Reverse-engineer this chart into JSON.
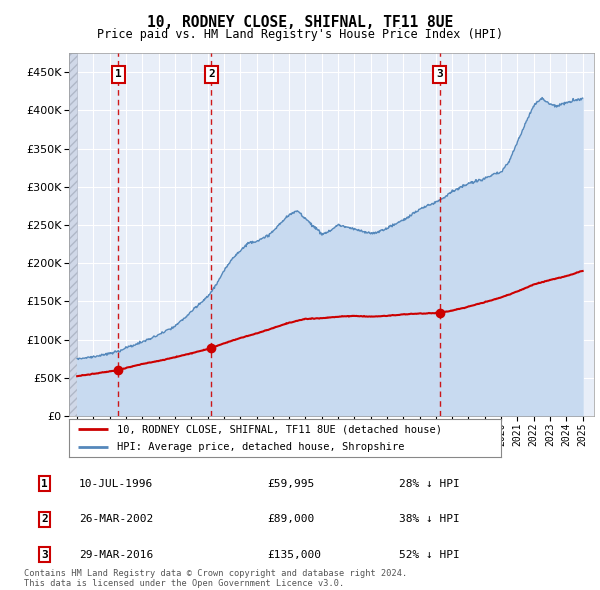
{
  "title": "10, RODNEY CLOSE, SHIFNAL, TF11 8UE",
  "subtitle": "Price paid vs. HM Land Registry's House Price Index (HPI)",
  "ytick_values": [
    0,
    50000,
    100000,
    150000,
    200000,
    250000,
    300000,
    350000,
    400000,
    450000
  ],
  "ylim": [
    0,
    475000
  ],
  "xlim_start": 1993.5,
  "xlim_end": 2025.7,
  "transactions": [
    {
      "num": 1,
      "date": "10-JUL-1996",
      "year": 1996.53,
      "price": 59995,
      "pct": "28%"
    },
    {
      "num": 2,
      "date": "26-MAR-2002",
      "year": 2002.23,
      "price": 89000,
      "pct": "38%"
    },
    {
      "num": 3,
      "date": "29-MAR-2016",
      "year": 2016.24,
      "price": 135000,
      "pct": "52%"
    }
  ],
  "legend_property": "10, RODNEY CLOSE, SHIFNAL, TF11 8UE (detached house)",
  "legend_hpi": "HPI: Average price, detached house, Shropshire",
  "footer": "Contains HM Land Registry data © Crown copyright and database right 2024.\nThis data is licensed under the Open Government Licence v3.0.",
  "property_line_color": "#cc0000",
  "hpi_line_color": "#5588bb",
  "hpi_fill_color": "#c8daf0",
  "marker_color": "#cc0000",
  "vline_color": "#cc0000",
  "box_edge_color": "#cc0000",
  "background_color": "#ffffff",
  "plot_bg_color": "#e8eef8",
  "grid_color": "#ffffff",
  "hpi_pts": [
    [
      1994,
      73000
    ],
    [
      1994.5,
      74000
    ],
    [
      1995,
      76000
    ],
    [
      1995.5,
      78000
    ],
    [
      1996,
      80000
    ],
    [
      1996.5,
      83000
    ],
    [
      1997,
      88000
    ],
    [
      1997.5,
      91000
    ],
    [
      1998,
      95000
    ],
    [
      1998.5,
      99000
    ],
    [
      1999,
      104000
    ],
    [
      1999.5,
      110000
    ],
    [
      2000,
      116000
    ],
    [
      2000.5,
      125000
    ],
    [
      2001,
      135000
    ],
    [
      2001.5,
      145000
    ],
    [
      2002,
      155000
    ],
    [
      2002.5,
      170000
    ],
    [
      2003,
      188000
    ],
    [
      2003.5,
      205000
    ],
    [
      2004,
      215000
    ],
    [
      2004.5,
      225000
    ],
    [
      2005,
      228000
    ],
    [
      2005.5,
      232000
    ],
    [
      2006,
      240000
    ],
    [
      2006.5,
      252000
    ],
    [
      2007,
      262000
    ],
    [
      2007.5,
      268000
    ],
    [
      2008,
      258000
    ],
    [
      2008.5,
      248000
    ],
    [
      2009,
      238000
    ],
    [
      2009.5,
      242000
    ],
    [
      2010,
      250000
    ],
    [
      2010.5,
      248000
    ],
    [
      2011,
      245000
    ],
    [
      2011.5,
      242000
    ],
    [
      2012,
      240000
    ],
    [
      2012.5,
      242000
    ],
    [
      2013,
      247000
    ],
    [
      2013.5,
      252000
    ],
    [
      2014,
      258000
    ],
    [
      2014.5,
      265000
    ],
    [
      2015,
      272000
    ],
    [
      2015.5,
      278000
    ],
    [
      2016,
      282000
    ],
    [
      2016.5,
      288000
    ],
    [
      2017,
      295000
    ],
    [
      2017.5,
      300000
    ],
    [
      2018,
      305000
    ],
    [
      2018.5,
      308000
    ],
    [
      2019,
      312000
    ],
    [
      2019.5,
      316000
    ],
    [
      2020,
      320000
    ],
    [
      2020.5,
      335000
    ],
    [
      2021,
      360000
    ],
    [
      2021.5,
      385000
    ],
    [
      2022,
      408000
    ],
    [
      2022.5,
      418000
    ],
    [
      2023,
      410000
    ],
    [
      2023.5,
      408000
    ],
    [
      2024,
      412000
    ],
    [
      2024.5,
      415000
    ],
    [
      2025,
      418000
    ]
  ],
  "prop_pts": [
    [
      1994.0,
      52000
    ],
    [
      1996.53,
      59995
    ],
    [
      1997,
      63000
    ],
    [
      1998,
      68000
    ],
    [
      1999,
      72000
    ],
    [
      2000,
      77000
    ],
    [
      2001,
      82000
    ],
    [
      2002.23,
      89000
    ],
    [
      2003,
      95000
    ],
    [
      2004,
      102000
    ],
    [
      2005,
      108000
    ],
    [
      2006,
      115000
    ],
    [
      2007,
      122000
    ],
    [
      2008,
      127000
    ],
    [
      2009,
      128000
    ],
    [
      2010,
      130000
    ],
    [
      2011,
      131000
    ],
    [
      2012,
      130000
    ],
    [
      2013,
      131000
    ],
    [
      2014,
      133000
    ],
    [
      2015,
      134000
    ],
    [
      2016.24,
      135000
    ],
    [
      2017,
      138000
    ],
    [
      2018,
      143000
    ],
    [
      2019,
      149000
    ],
    [
      2020,
      155000
    ],
    [
      2021,
      163000
    ],
    [
      2022,
      172000
    ],
    [
      2023,
      178000
    ],
    [
      2024,
      183000
    ],
    [
      2025,
      190000
    ]
  ],
  "table_rows": [
    {
      "num": 1,
      "date": "10-JUL-1996",
      "price": "£59,995",
      "pct": "28% ↓ HPI"
    },
    {
      "num": 2,
      "date": "26-MAR-2002",
      "price": "£89,000",
      "pct": "38% ↓ HPI"
    },
    {
      "num": 3,
      "date": "29-MAR-2016",
      "price": "£135,000",
      "pct": "52% ↓ HPI"
    }
  ]
}
